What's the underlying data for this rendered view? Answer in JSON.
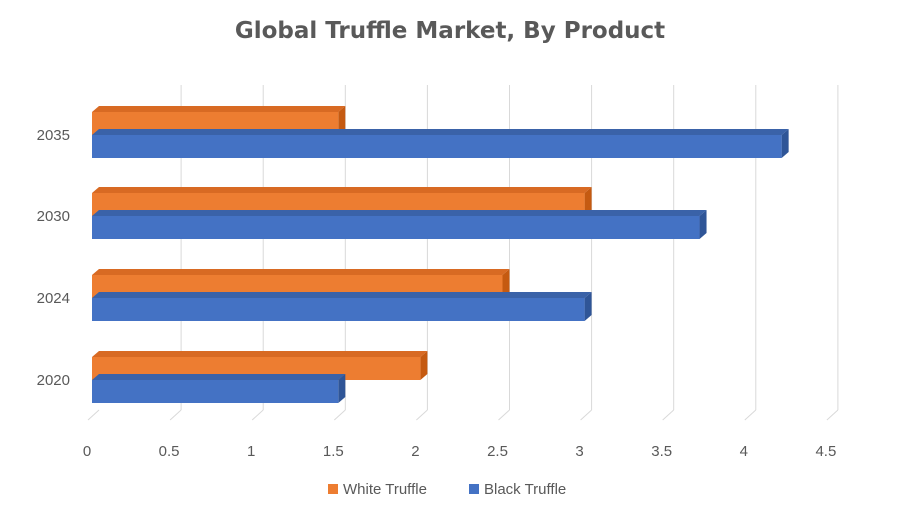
{
  "chart_data": {
    "type": "bar",
    "orientation": "horizontal",
    "style": "3d-clustered",
    "title": "Global Truffle Market, By Product",
    "categories": [
      "2020",
      "2024",
      "2030",
      "2035"
    ],
    "series": [
      {
        "name": "White Truffle",
        "values": [
          2.0,
          2.5,
          3.0,
          1.5
        ],
        "color": "#ED7D31",
        "side_color": "#C55A11",
        "top_color": "#D86A23"
      },
      {
        "name": "Black Truffle",
        "values": [
          1.5,
          3.0,
          3.7,
          4.2
        ],
        "color": "#4472C4",
        "side_color": "#2F5597",
        "top_color": "#3A62A8"
      }
    ],
    "x_ticks": [
      "0",
      "0.5",
      "1",
      "1.5",
      "2",
      "2.5",
      "3",
      "3.5",
      "4",
      "4.5"
    ],
    "xlim": [
      0,
      4.5
    ],
    "grid": true,
    "legend": {
      "placement": "bottom",
      "entries": [
        "White Truffle",
        "Black Truffle"
      ]
    }
  }
}
